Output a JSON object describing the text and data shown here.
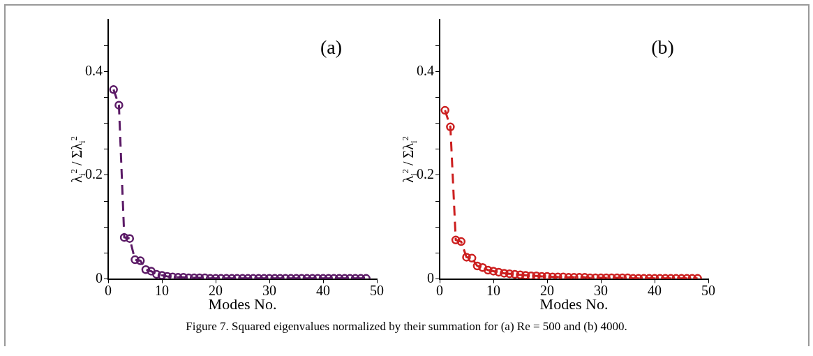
{
  "chart_data": [
    {
      "type": "line",
      "title": "(a)",
      "xlabel": "Modes No.",
      "ylabel": "λ$_{i}$$^{2}$ / Σλ$_{i}$$^{2}$",
      "x": [
        1,
        2,
        3,
        4,
        5,
        6,
        7,
        8,
        9,
        10,
        11,
        12,
        13,
        14,
        15,
        16,
        17,
        18,
        19,
        20,
        21,
        22,
        23,
        24,
        25,
        26,
        27,
        28,
        29,
        30,
        31,
        32,
        33,
        34,
        35,
        36,
        37,
        38,
        39,
        40,
        41,
        42,
        43,
        44,
        45,
        46,
        47,
        48
      ],
      "series": [
        {
          "color": "#5b1a66",
          "values": [
            0.365,
            0.335,
            0.08,
            0.078,
            0.037,
            0.035,
            0.018,
            0.015,
            0.009,
            0.007,
            0.005,
            0.004,
            0.003,
            0.003,
            0.002,
            0.002,
            0.002,
            0.002,
            0.001,
            0.001,
            0.001,
            0.001,
            0.001,
            0.001,
            0.001,
            0.001,
            0.001,
            0.001,
            0.001,
            0.001,
            0.001,
            0.001,
            0.001,
            0.001,
            0.001,
            0.001,
            0.001,
            0.001,
            0.001,
            0.001,
            0.001,
            0.001,
            0.001,
            0.001,
            0.001,
            0.001,
            0.001,
            0.001
          ]
        }
      ],
      "xlim": [
        0,
        50
      ],
      "xticks": [
        0,
        10,
        20,
        30,
        40,
        50
      ],
      "ylim": [
        0,
        0.5
      ],
      "yticks": [
        0,
        {
          "value": 0.05,
          "label": null
        },
        {
          "value": 0.1,
          "label": null
        },
        {
          "value": 0.15,
          "label": null
        },
        0.2,
        {
          "value": 0.25,
          "label": null
        },
        {
          "value": 0.3,
          "label": null
        },
        {
          "value": 0.35,
          "label": null
        },
        0.4,
        {
          "value": 0.45,
          "label": null
        }
      ],
      "marker": "circle",
      "line_style": "dashed",
      "grid": false,
      "legend": false,
      "annotations": [
        "Figure 7.  Squared eigenvalues normalized by their summation for (a) Re = 500 and (b) 4000."
      ]
    },
    {
      "type": "line",
      "title": "(b)",
      "xlabel": "Modes No.",
      "ylabel": "λ$_{i}$$^{2}$ / Σλ$_{i}$$^{2}$",
      "x": [
        1,
        2,
        3,
        4,
        5,
        6,
        7,
        8,
        9,
        10,
        11,
        12,
        13,
        14,
        15,
        16,
        17,
        18,
        19,
        20,
        21,
        22,
        23,
        24,
        25,
        26,
        27,
        28,
        29,
        30,
        31,
        32,
        33,
        34,
        35,
        36,
        37,
        38,
        39,
        40,
        41,
        42,
        43,
        44,
        45,
        46,
        47,
        48
      ],
      "series": [
        {
          "color": "#cc1f1f",
          "values": [
            0.325,
            0.293,
            0.075,
            0.072,
            0.042,
            0.04,
            0.025,
            0.022,
            0.017,
            0.015,
            0.013,
            0.011,
            0.01,
            0.009,
            0.008,
            0.007,
            0.006,
            0.006,
            0.005,
            0.005,
            0.004,
            0.004,
            0.004,
            0.003,
            0.003,
            0.003,
            0.003,
            0.002,
            0.002,
            0.002,
            0.002,
            0.002,
            0.002,
            0.002,
            0.002,
            0.001,
            0.001,
            0.001,
            0.001,
            0.001,
            0.001,
            0.001,
            0.001,
            0.001,
            0.001,
            0.001,
            0.001,
            0.001
          ]
        }
      ],
      "xlim": [
        0,
        50
      ],
      "xticks": [
        0,
        10,
        20,
        30,
        40,
        50
      ],
      "ylim": [
        0,
        0.5
      ],
      "yticks": [
        0,
        {
          "value": 0.05,
          "label": null
        },
        {
          "value": 0.1,
          "label": null
        },
        {
          "value": 0.15,
          "label": null
        },
        0.2,
        {
          "value": 0.25,
          "label": null
        },
        {
          "value": 0.3,
          "label": null
        },
        {
          "value": 0.35,
          "label": null
        },
        0.4,
        {
          "value": 0.45,
          "label": null
        }
      ],
      "marker": "circle",
      "line_style": "dashed",
      "grid": false,
      "legend": false
    }
  ]
}
